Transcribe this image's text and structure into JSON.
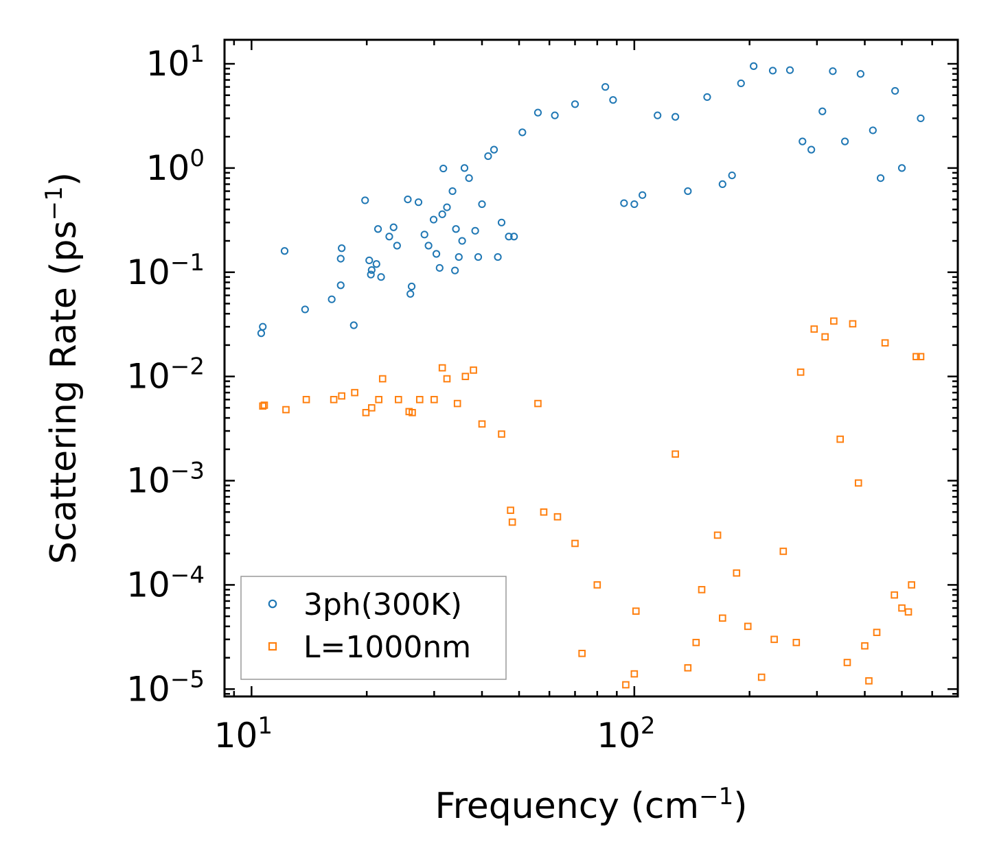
{
  "chart_data": {
    "type": "scatter",
    "xscale": "log",
    "yscale": "log",
    "xlim": [
      8.5,
      700
    ],
    "ylim": [
      8.5e-06,
      17
    ],
    "xlabel": "Frequency (cm",
    "xlabel_sup": "−1",
    "xlabel_end": ")",
    "ylabel": "Scattering Rate (ps",
    "ylabel_sup": "−1",
    "ylabel_end": ")",
    "x_ticks": [
      {
        "value": 10,
        "base": "10",
        "exp": "1"
      },
      {
        "value": 100,
        "base": "10",
        "exp": "2"
      }
    ],
    "y_ticks": [
      {
        "value": 10,
        "base": "10",
        "exp": "1"
      },
      {
        "value": 1,
        "base": "10",
        "exp": "0"
      },
      {
        "value": 0.1,
        "base": "10",
        "exp": "−1"
      },
      {
        "value": 0.01,
        "base": "10",
        "exp": "−2"
      },
      {
        "value": 0.001,
        "base": "10",
        "exp": "−3"
      },
      {
        "value": 0.0001,
        "base": "10",
        "exp": "−4"
      },
      {
        "value": 1e-05,
        "base": "10",
        "exp": "−5"
      }
    ],
    "legend": {
      "position": "lower-left",
      "entries": [
        {
          "label": "3ph(300K)",
          "marker": "circle",
          "color": "#1f77b4"
        },
        {
          "label": "L=1000nm",
          "marker": "square",
          "color": "#ff7f0e"
        }
      ]
    },
    "series": [
      {
        "name": "3ph(300K)",
        "marker": "circle",
        "color": "#1f77b4",
        "points": [
          [
            10.6,
            0.026
          ],
          [
            10.7,
            0.03
          ],
          [
            12.2,
            0.16
          ],
          [
            13.8,
            0.044
          ],
          [
            16.2,
            0.055
          ],
          [
            17.1,
            0.075
          ],
          [
            17.1,
            0.135
          ],
          [
            17.2,
            0.17
          ],
          [
            18.5,
            0.031
          ],
          [
            19.8,
            0.49
          ],
          [
            20.3,
            0.13
          ],
          [
            20.5,
            0.095
          ],
          [
            20.6,
            0.105
          ],
          [
            21.2,
            0.12
          ],
          [
            21.4,
            0.26
          ],
          [
            21.8,
            0.09
          ],
          [
            22.9,
            0.22
          ],
          [
            23.5,
            0.27
          ],
          [
            24.0,
            0.18
          ],
          [
            25.6,
            0.5
          ],
          [
            26.0,
            0.062
          ],
          [
            26.2,
            0.073
          ],
          [
            27.3,
            0.47
          ],
          [
            28.3,
            0.23
          ],
          [
            29.0,
            0.18
          ],
          [
            29.9,
            0.32
          ],
          [
            30.4,
            0.15
          ],
          [
            31.0,
            0.11
          ],
          [
            31.5,
            0.36
          ],
          [
            31.7,
            0.99
          ],
          [
            32.4,
            0.42
          ],
          [
            33.5,
            0.6
          ],
          [
            34.0,
            0.104
          ],
          [
            34.2,
            0.26
          ],
          [
            34.8,
            0.14
          ],
          [
            35.5,
            0.2
          ],
          [
            36.0,
            1.0
          ],
          [
            37.0,
            0.8
          ],
          [
            38.4,
            0.25
          ],
          [
            39.1,
            0.14
          ],
          [
            40.0,
            0.45
          ],
          [
            41.5,
            1.3
          ],
          [
            43.0,
            1.5
          ],
          [
            44.0,
            0.14
          ],
          [
            45.0,
            0.3
          ],
          [
            47.0,
            0.22
          ],
          [
            48.5,
            0.22
          ],
          [
            51,
            2.2
          ],
          [
            56,
            3.4
          ],
          [
            62,
            3.2
          ],
          [
            70,
            4.1
          ],
          [
            84,
            6.0
          ],
          [
            88,
            4.5
          ],
          [
            94,
            0.46
          ],
          [
            100,
            0.45
          ],
          [
            105,
            0.55
          ],
          [
            115,
            3.2
          ],
          [
            128,
            3.1
          ],
          [
            138,
            0.6
          ],
          [
            155,
            4.8
          ],
          [
            170,
            0.7
          ],
          [
            180,
            0.85
          ],
          [
            190,
            6.5
          ],
          [
            205,
            9.5
          ],
          [
            230,
            8.6
          ],
          [
            255,
            8.7
          ],
          [
            275,
            1.8
          ],
          [
            290,
            1.5
          ],
          [
            310,
            3.5
          ],
          [
            330,
            8.5
          ],
          [
            355,
            1.8
          ],
          [
            390,
            8.0
          ],
          [
            420,
            2.3
          ],
          [
            440,
            0.8
          ],
          [
            480,
            5.5
          ],
          [
            500,
            1.0
          ],
          [
            560,
            3.0
          ]
        ]
      },
      {
        "name": "L=1000nm",
        "marker": "square",
        "color": "#ff7f0e",
        "points": [
          [
            10.7,
            0.0052
          ],
          [
            10.8,
            0.0053
          ],
          [
            12.3,
            0.0048
          ],
          [
            13.9,
            0.006
          ],
          [
            16.4,
            0.006
          ],
          [
            17.2,
            0.0065
          ],
          [
            18.6,
            0.007
          ],
          [
            19.9,
            0.0045
          ],
          [
            20.6,
            0.005
          ],
          [
            21.5,
            0.006
          ],
          [
            22.0,
            0.0095
          ],
          [
            24.2,
            0.006
          ],
          [
            25.8,
            0.0046
          ],
          [
            26.3,
            0.0045
          ],
          [
            27.5,
            0.006
          ],
          [
            30.0,
            0.006
          ],
          [
            31.5,
            0.0121
          ],
          [
            32.4,
            0.0095
          ],
          [
            34.5,
            0.0055
          ],
          [
            36.2,
            0.01
          ],
          [
            38.0,
            0.0115
          ],
          [
            40.0,
            0.0035
          ],
          [
            45.0,
            0.0028
          ],
          [
            47.5,
            0.00052
          ],
          [
            48.0,
            0.0004
          ],
          [
            56,
            0.0055
          ],
          [
            58,
            0.0005
          ],
          [
            63,
            0.00045
          ],
          [
            70,
            0.00025
          ],
          [
            73,
            2.2e-05
          ],
          [
            80,
            0.0001
          ],
          [
            95,
            1.1e-05
          ],
          [
            100,
            1.4e-05
          ],
          [
            101,
            5.6e-05
          ],
          [
            128,
            0.0018
          ],
          [
            138,
            1.6e-05
          ],
          [
            145,
            2.8e-05
          ],
          [
            150,
            9e-05
          ],
          [
            165,
            0.0003
          ],
          [
            170,
            4.8e-05
          ],
          [
            185,
            0.00013
          ],
          [
            198,
            4e-05
          ],
          [
            215,
            1.3e-05
          ],
          [
            232,
            3e-05
          ],
          [
            245,
            0.00021
          ],
          [
            265,
            2.8e-05
          ],
          [
            272,
            0.011
          ],
          [
            295,
            0.0285
          ],
          [
            315,
            0.024
          ],
          [
            332,
            0.034
          ],
          [
            345,
            0.0025
          ],
          [
            360,
            1.8e-05
          ],
          [
            372,
            0.032
          ],
          [
            385,
            0.00095
          ],
          [
            400,
            2.6e-05
          ],
          [
            410,
            1.2e-05
          ],
          [
            430,
            3.5e-05
          ],
          [
            452,
            0.021
          ],
          [
            478,
            8e-05
          ],
          [
            500,
            6e-05
          ],
          [
            520,
            5.5e-05
          ],
          [
            530,
            0.0001
          ],
          [
            545,
            0.0155
          ],
          [
            560,
            0.0155
          ]
        ]
      }
    ]
  }
}
